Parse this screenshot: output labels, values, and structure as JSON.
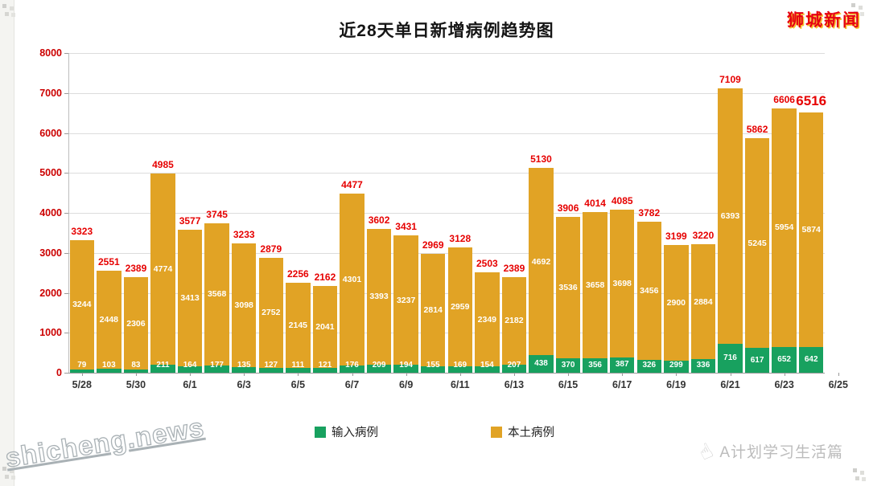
{
  "page": {
    "logo": "狮城新闻",
    "watermark_left": "shicheng.news",
    "watermark_right": "A计划学习生活篇"
  },
  "chart_data": {
    "type": "bar",
    "stacked": true,
    "title": "近28天单日新增病例趋势图",
    "x_tick_labels": [
      "5/28",
      "5/30",
      "6/1",
      "6/3",
      "6/5",
      "6/7",
      "6/9",
      "6/11",
      "6/13",
      "6/15",
      "6/17",
      "6/19",
      "6/21",
      "6/23",
      "6/25"
    ],
    "y_ticks": [
      0,
      1000,
      2000,
      3000,
      4000,
      5000,
      6000,
      7000,
      8000
    ],
    "ylim": [
      0,
      8000
    ],
    "grid": true,
    "legend_position": "bottom",
    "legend": [
      {
        "label": "输入病例",
        "color": "#18a15f"
      },
      {
        "label": "本土病例",
        "color": "#e1a325"
      }
    ],
    "series": [
      {
        "name": "输入病例",
        "color": "#18a15f",
        "values": [
          79,
          103,
          83,
          211,
          164,
          177,
          135,
          127,
          111,
          121,
          176,
          209,
          194,
          155,
          169,
          154,
          207,
          438,
          370,
          356,
          387,
          326,
          299,
          336,
          716,
          617,
          652,
          642
        ]
      },
      {
        "name": "本土病例",
        "color": "#e1a325",
        "values": [
          3244,
          2448,
          2306,
          4774,
          3413,
          3568,
          3098,
          2752,
          2145,
          2041,
          4301,
          3393,
          3237,
          2814,
          2959,
          2349,
          2182,
          4692,
          3536,
          3658,
          3698,
          3456,
          2900,
          2884,
          6393,
          5245,
          5954,
          5874
        ]
      }
    ],
    "totals": [
      3323,
      2551,
      2389,
      4985,
      3577,
      3745,
      3233,
      2879,
      2256,
      2162,
      4477,
      3602,
      3431,
      2969,
      3128,
      2503,
      2389,
      5130,
      3906,
      4014,
      4085,
      3782,
      3199,
      3220,
      7109,
      5862,
      6606,
      6516
    ],
    "total_label_color": "#e60000",
    "y_label_color": "#cc0000"
  }
}
